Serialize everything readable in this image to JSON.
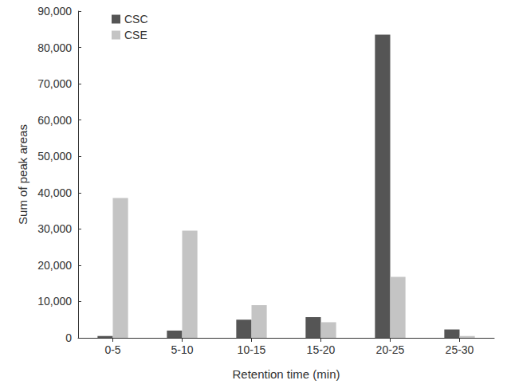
{
  "chart_data": {
    "type": "bar",
    "x_label": "Retention time (min)",
    "y_label": "Sum of peak areas",
    "categories": [
      "0-5",
      "5-10",
      "10-15",
      "15-20",
      "20-25",
      "25-30"
    ],
    "series": [
      {
        "name": "CSC",
        "color": "#555555",
        "values": [
          500,
          2000,
          5000,
          5700,
          83500,
          2300
        ]
      },
      {
        "name": "CSE",
        "color": "#c4c4c4",
        "values": [
          38500,
          29500,
          9000,
          4300,
          16800,
          500
        ]
      }
    ],
    "ylim": [
      0,
      90000
    ],
    "yticks": [
      0,
      {
        "value": 10000,
        "label": "10,000"
      },
      {
        "value": 20000,
        "label": "20,000"
      },
      {
        "value": 30000,
        "label": "30,000"
      },
      {
        "value": 40000,
        "label": "40,000"
      },
      {
        "value": 50000,
        "label": "50,000"
      },
      {
        "value": 60000,
        "label": "60,000"
      },
      {
        "value": 70000,
        "label": "70,000"
      },
      {
        "value": 80000,
        "label": "80,000"
      },
      {
        "value": 90000,
        "label": "90,000"
      }
    ],
    "grid": false,
    "legend": "upper left"
  }
}
